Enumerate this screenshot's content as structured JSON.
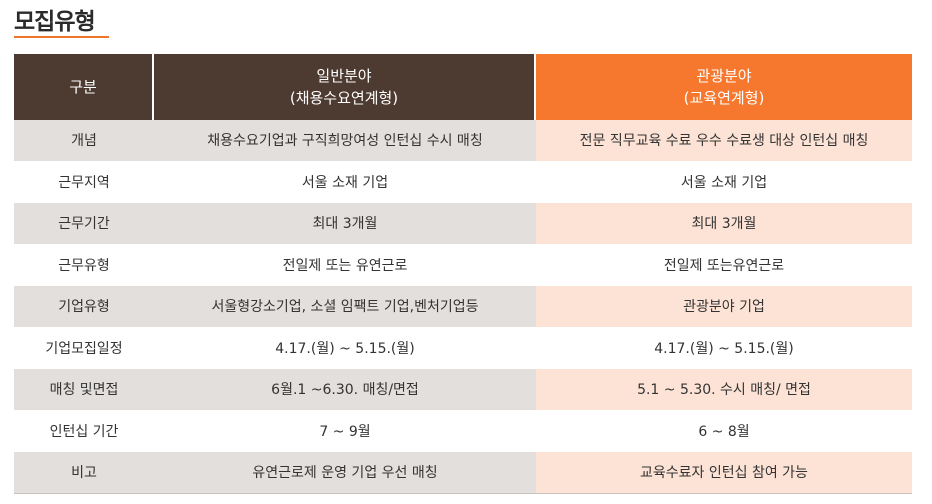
{
  "title": "모집유형",
  "colors": {
    "accent": "#f5782e",
    "header_dark": "#4d3a30",
    "row_gray": "#e3dfdc",
    "row_pink": "#fde3d6"
  },
  "table": {
    "headers": {
      "category": "구분",
      "general_line1": "일반분야",
      "general_line2": "(채용수요연계형)",
      "tourism_line1": "관광분야",
      "tourism_line2": "(교육연계형)"
    },
    "rows": [
      {
        "label": "개념",
        "general": "채용수요기업과 구직희망여성 인턴십 수시 매칭",
        "tourism": "전문 직무교육 수료 우수 수료생 대상 인턴십 매칭"
      },
      {
        "label": "근무지역",
        "general": "서울 소재 기업",
        "tourism": "서울 소재 기업"
      },
      {
        "label": "근무기간",
        "general": "최대 3개월",
        "tourism": "최대 3개월"
      },
      {
        "label": "근무유형",
        "general": "전일제 또는 유연근로",
        "tourism": "전일제 또는유연근로"
      },
      {
        "label": "기업유형",
        "general": "서울형강소기업, 소셜 임팩트 기업,벤처기업등",
        "tourism": "관광분야 기업"
      },
      {
        "label": "기업모집일정",
        "general": "4.17.(월) ~ 5.15.(월)",
        "tourism": "4.17.(월) ~ 5.15.(월)"
      },
      {
        "label": "매칭 및면접",
        "general": "6월.1 ~6.30. 매칭/면접",
        "tourism": "5.1 ~ 5.30. 수시 매칭/ 면접"
      },
      {
        "label": "인턴십 기간",
        "general": "7 ~ 9월",
        "tourism": "6 ~ 8월"
      },
      {
        "label": "비고",
        "general": "유연근로제 운영 기업 우선 매칭",
        "tourism": "교육수료자 인턴십 참여 가능"
      }
    ]
  }
}
